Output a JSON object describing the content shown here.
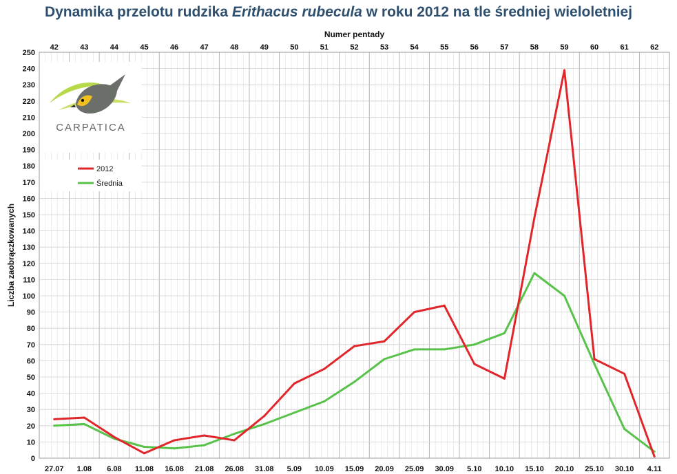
{
  "title": {
    "before": "Dynamika przelotu rudzika ",
    "species": "Erithacus rubecula",
    "after": " w roku 2012 na tle średniej wieloletniej"
  },
  "logo": {
    "text": "CARPATICA"
  },
  "colors": {
    "series_2012": "#e0262a",
    "series_mean": "#58c24a",
    "title": "#2e4f6e",
    "grid_major": "#b5b5b5",
    "grid_minor": "#e0e0e0"
  },
  "chart_data": {
    "type": "line",
    "title": "Dynamika przelotu rudzika Erithacus rubecula w roku 2012 na tle średniej wieloletniej",
    "xlabel": "",
    "x2label": "Numer pentady",
    "ylabel": "Liczba zaobrączkowanych",
    "ylim": [
      0,
      250
    ],
    "ytick_step": 10,
    "grid": true,
    "legend_position": "top-left",
    "categories": [
      "27.07",
      "1.08",
      "6.08",
      "11.08",
      "16.08",
      "21.08",
      "26.08",
      "31.08",
      "5.09",
      "10.09",
      "15.09",
      "20.09",
      "25.09",
      "30.09",
      "5.10",
      "10.10",
      "15.10",
      "20.10",
      "25.10",
      "30.10",
      "4.11"
    ],
    "pentads": [
      "42",
      "43",
      "44",
      "45",
      "46",
      "47",
      "48",
      "49",
      "50",
      "51",
      "52",
      "53",
      "54",
      "55",
      "56",
      "57",
      "58",
      "59",
      "60",
      "61",
      "62"
    ],
    "series": [
      {
        "name": "2012",
        "color": "#e0262a",
        "values": [
          24,
          25,
          13,
          3,
          11,
          14,
          11,
          26,
          46,
          55,
          69,
          72,
          90,
          94,
          58,
          49,
          148,
          239,
          61,
          52,
          1
        ]
      },
      {
        "name": "Średnia",
        "color": "#58c24a",
        "values": [
          20,
          21,
          12,
          7,
          6,
          8,
          15,
          21,
          28,
          35,
          47,
          61,
          67,
          67,
          70,
          77,
          114,
          100,
          58,
          18,
          4
        ]
      }
    ]
  }
}
